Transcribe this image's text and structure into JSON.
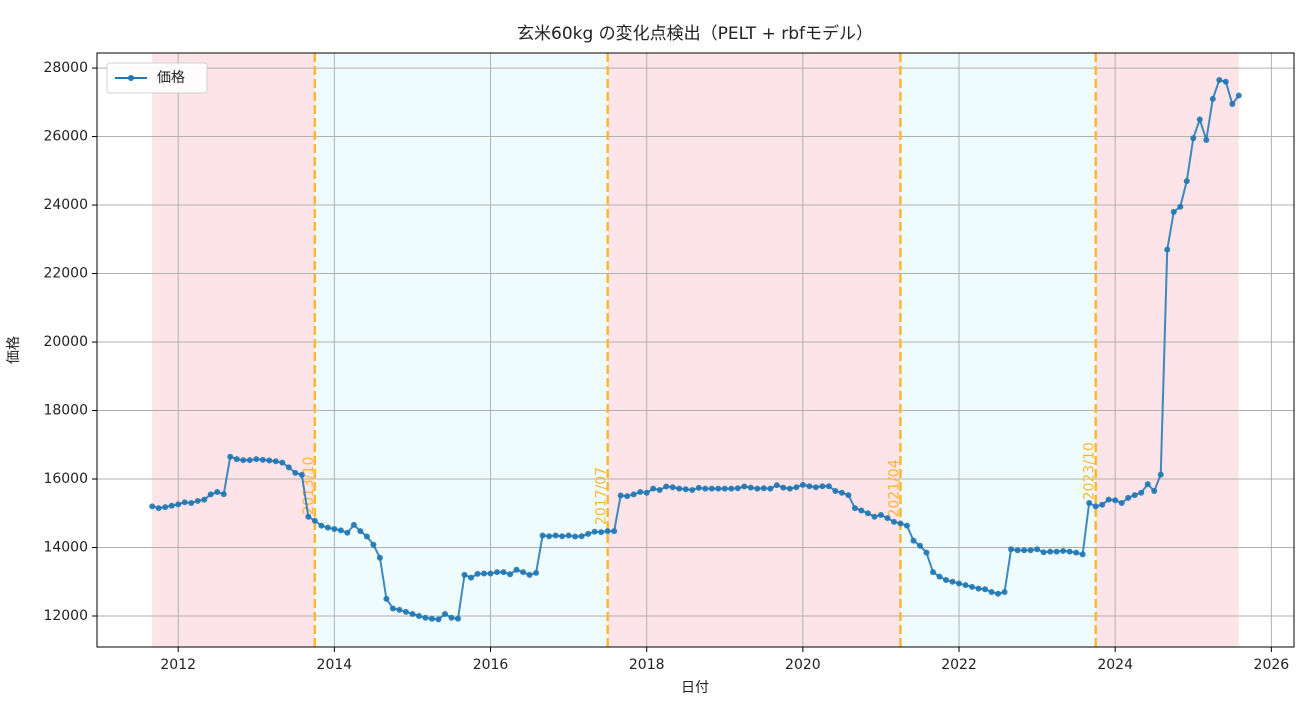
{
  "chart_data": {
    "type": "line",
    "title": "玄米60kg の変化点検出（PELT + rbfモデル）",
    "x_label": "日付",
    "y_label": "価格",
    "x": [
      "2011/09",
      "2011/10",
      "2011/11",
      "2011/12",
      "2012/01",
      "2012/02",
      "2012/03",
      "2012/04",
      "2012/05",
      "2012/06",
      "2012/07",
      "2012/08",
      "2012/09",
      "2012/10",
      "2012/11",
      "2012/12",
      "2013/01",
      "2013/02",
      "2013/03",
      "2013/04",
      "2013/05",
      "2013/06",
      "2013/07",
      "2013/08",
      "2013/09",
      "2013/10",
      "2013/11",
      "2013/12",
      "2014/01",
      "2014/02",
      "2014/03",
      "2014/04",
      "2014/05",
      "2014/06",
      "2014/07",
      "2014/08",
      "2014/09",
      "2014/10",
      "2014/11",
      "2014/12",
      "2015/01",
      "2015/02",
      "2015/03",
      "2015/04",
      "2015/05",
      "2015/06",
      "2015/07",
      "2015/08",
      "2015/09",
      "2015/10",
      "2015/11",
      "2015/12",
      "2016/01",
      "2016/02",
      "2016/03",
      "2016/04",
      "2016/05",
      "2016/06",
      "2016/07",
      "2016/08",
      "2016/09",
      "2016/10",
      "2016/11",
      "2016/12",
      "2017/01",
      "2017/02",
      "2017/03",
      "2017/04",
      "2017/05",
      "2017/06",
      "2017/07",
      "2017/08",
      "2017/09",
      "2017/10",
      "2017/11",
      "2017/12",
      "2018/01",
      "2018/02",
      "2018/03",
      "2018/04",
      "2018/05",
      "2018/06",
      "2018/07",
      "2018/08",
      "2018/09",
      "2018/10",
      "2018/11",
      "2018/12",
      "2019/01",
      "2019/02",
      "2019/03",
      "2019/04",
      "2019/05",
      "2019/06",
      "2019/07",
      "2019/08",
      "2019/09",
      "2019/10",
      "2019/11",
      "2019/12",
      "2020/01",
      "2020/02",
      "2020/03",
      "2020/04",
      "2020/05",
      "2020/06",
      "2020/07",
      "2020/08",
      "2020/09",
      "2020/10",
      "2020/11",
      "2020/12",
      "2021/01",
      "2021/02",
      "2021/03",
      "2021/04",
      "2021/05",
      "2021/06",
      "2021/07",
      "2021/08",
      "2021/09",
      "2021/10",
      "2021/11",
      "2021/12",
      "2022/01",
      "2022/02",
      "2022/03",
      "2022/04",
      "2022/05",
      "2022/06",
      "2022/07",
      "2022/08",
      "2022/09",
      "2022/10",
      "2022/11",
      "2022/12",
      "2023/01",
      "2023/02",
      "2023/03",
      "2023/04",
      "2023/05",
      "2023/06",
      "2023/07",
      "2023/08",
      "2023/09",
      "2023/10",
      "2023/11",
      "2023/12",
      "2024/01",
      "2024/02",
      "2024/03",
      "2024/04",
      "2024/05",
      "2024/06",
      "2024/07",
      "2024/08",
      "2024/09",
      "2024/10",
      "2024/11",
      "2024/12",
      "2025/01",
      "2025/02",
      "2025/03",
      "2025/04",
      "2025/05",
      "2025/06",
      "2025/07",
      "2025/08"
    ],
    "series": [
      {
        "name": "価格",
        "color": "#1f77b4",
        "values": [
          15200,
          15150,
          15180,
          15220,
          15260,
          15320,
          15300,
          15360,
          15400,
          15550,
          15620,
          15560,
          16650,
          16580,
          16550,
          16550,
          16580,
          16560,
          16540,
          16520,
          16480,
          16340,
          16180,
          16120,
          14900,
          14780,
          14640,
          14580,
          14540,
          14500,
          14430,
          14660,
          14480,
          14320,
          14080,
          13700,
          12500,
          12220,
          12180,
          12120,
          12060,
          12000,
          11950,
          11920,
          11900,
          12060,
          11950,
          11920,
          13200,
          13120,
          13230,
          13240,
          13240,
          13280,
          13280,
          13220,
          13350,
          13280,
          13200,
          13260,
          14350,
          14330,
          14350,
          14330,
          14350,
          14320,
          14330,
          14400,
          14460,
          14450,
          14480,
          14480,
          15520,
          15500,
          15550,
          15620,
          15600,
          15720,
          15680,
          15780,
          15760,
          15720,
          15700,
          15680,
          15740,
          15720,
          15720,
          15720,
          15720,
          15720,
          15730,
          15780,
          15750,
          15720,
          15730,
          15720,
          15820,
          15750,
          15720,
          15760,
          15830,
          15790,
          15760,
          15790,
          15790,
          15650,
          15600,
          15530,
          15150,
          15080,
          15000,
          14900,
          14950,
          14860,
          14750,
          14700,
          14640,
          14200,
          14050,
          13850,
          13280,
          13150,
          13050,
          13000,
          12950,
          12900,
          12850,
          12800,
          12780,
          12700,
          12650,
          12700,
          13950,
          13920,
          13920,
          13920,
          13950,
          13860,
          13880,
          13880,
          13900,
          13880,
          13850,
          13800,
          15300,
          15200,
          15250,
          15400,
          15380,
          15300,
          15450,
          15530,
          15600,
          15850,
          15650,
          16130,
          22700,
          23800,
          23950,
          24700,
          25950,
          26500,
          25900,
          27100,
          27650,
          27600,
          26950,
          27200
        ]
      }
    ],
    "changepoints": [
      "2013/10",
      "2017/07",
      "2021/04",
      "2023/10"
    ],
    "changepoint_color": "#ffb732",
    "region_colors": [
      "#fde4e9",
      "#effcfd"
    ],
    "xlim": [
      2010.96,
      2026.29
    ],
    "xticks": [
      2012,
      2014,
      2016,
      2018,
      2020,
      2022,
      2024,
      2026
    ],
    "ylim": [
      11095,
      28440
    ],
    "yticks": [
      12000,
      14000,
      16000,
      18000,
      20000,
      22000,
      24000,
      26000,
      28000
    ],
    "grid": true,
    "legend": "upper left"
  }
}
